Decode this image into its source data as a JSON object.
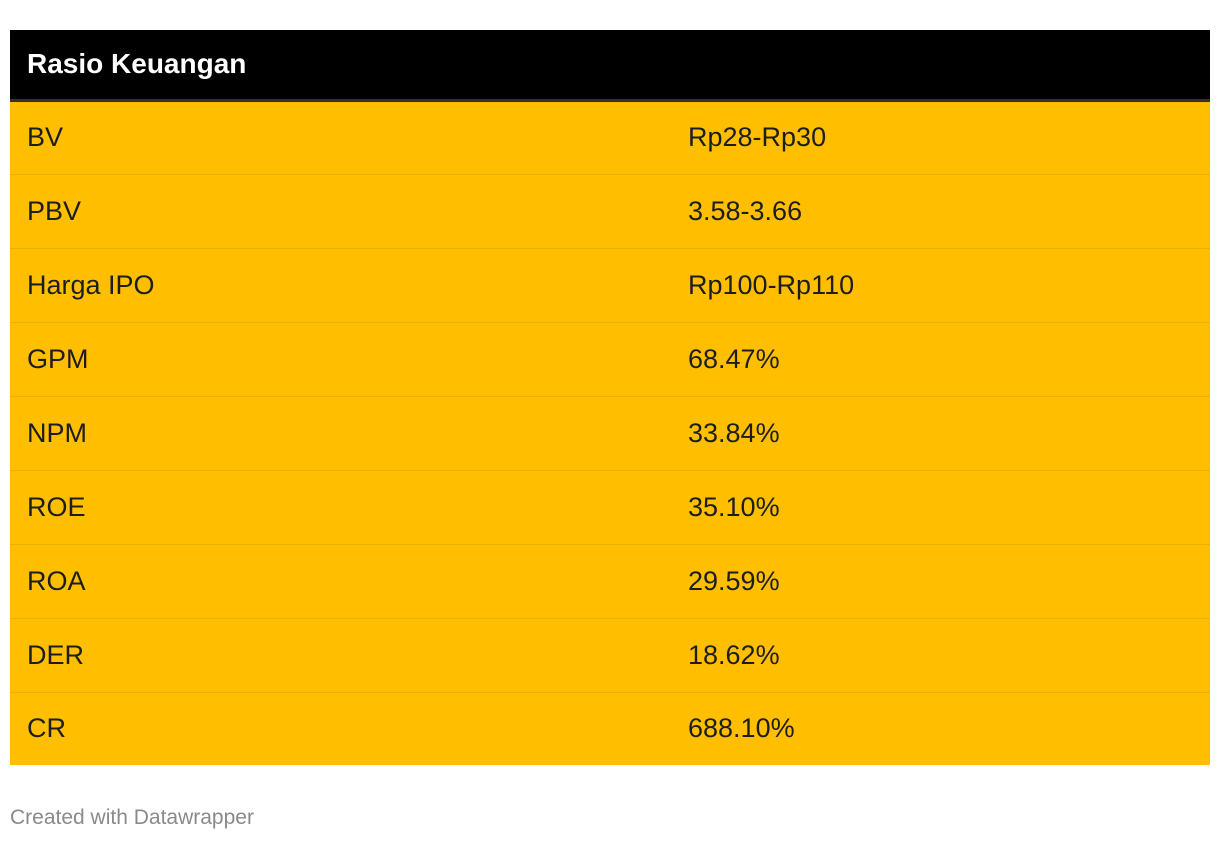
{
  "chart_data": {
    "type": "table",
    "header": [
      "Rasio Keuangan",
      ""
    ],
    "rows": [
      [
        "BV",
        "Rp28-Rp30"
      ],
      [
        "PBV",
        "3.58-3.66"
      ],
      [
        "Harga IPO",
        "Rp100-Rp110"
      ],
      [
        "GPM",
        "68.47%"
      ],
      [
        "NPM",
        "33.84%"
      ],
      [
        "ROE",
        "35.10%"
      ],
      [
        "ROA",
        "29.59%"
      ],
      [
        "DER",
        "18.62%"
      ],
      [
        "CR",
        "688.10%"
      ]
    ]
  },
  "footer": "Created with Datawrapper",
  "colors": {
    "header_bg": "#000000",
    "row_bg": "#FFBF00",
    "text": "#1d1d1d"
  }
}
